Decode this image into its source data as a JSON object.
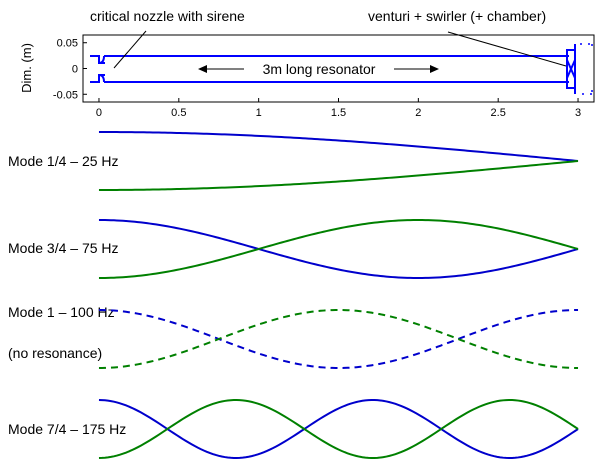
{
  "top_plot": {
    "ylabel": "Dim. (m)",
    "yticks": [
      {
        "value": 0.05,
        "label": "0.05"
      },
      {
        "value": 0,
        "label": "0"
      },
      {
        "value": -0.05,
        "label": "-0.05"
      }
    ],
    "xticks": [
      {
        "value": 0,
        "label": "0"
      },
      {
        "value": 0.5,
        "label": "0.5"
      },
      {
        "value": 1,
        "label": "1"
      },
      {
        "value": 1.5,
        "label": "1.5"
      },
      {
        "value": 2,
        "label": "2"
      },
      {
        "value": 2.5,
        "label": "2.5"
      },
      {
        "value": 3,
        "label": "3"
      }
    ],
    "xlim": [
      -0.1,
      3.1
    ],
    "ylim": [
      -0.065,
      0.065
    ],
    "annotations": {
      "nozzle": "critical nozzle with sirene",
      "venturi": "venturi + swirler (+ chamber)",
      "resonator": "3m long resonator"
    },
    "colors": {
      "geometry": "#0000ff",
      "axes": "#000000"
    }
  },
  "modes": [
    {
      "label": "Mode 1/4 – 25 Hz",
      "sublabel": "",
      "quarter_waves": 1,
      "dashed": false
    },
    {
      "label": "Mode 3/4 – 75 Hz",
      "sublabel": "",
      "quarter_waves": 3,
      "dashed": false
    },
    {
      "label": "Mode 1  – 100 Hz",
      "sublabel": "(no resonance)",
      "quarter_waves": 4,
      "dashed": true
    },
    {
      "label": "Mode 7/4 – 175 Hz",
      "sublabel": "",
      "quarter_waves": 7,
      "dashed": false
    }
  ],
  "mode_colors": {
    "upper": "#0000cc",
    "lower": "#008000"
  }
}
